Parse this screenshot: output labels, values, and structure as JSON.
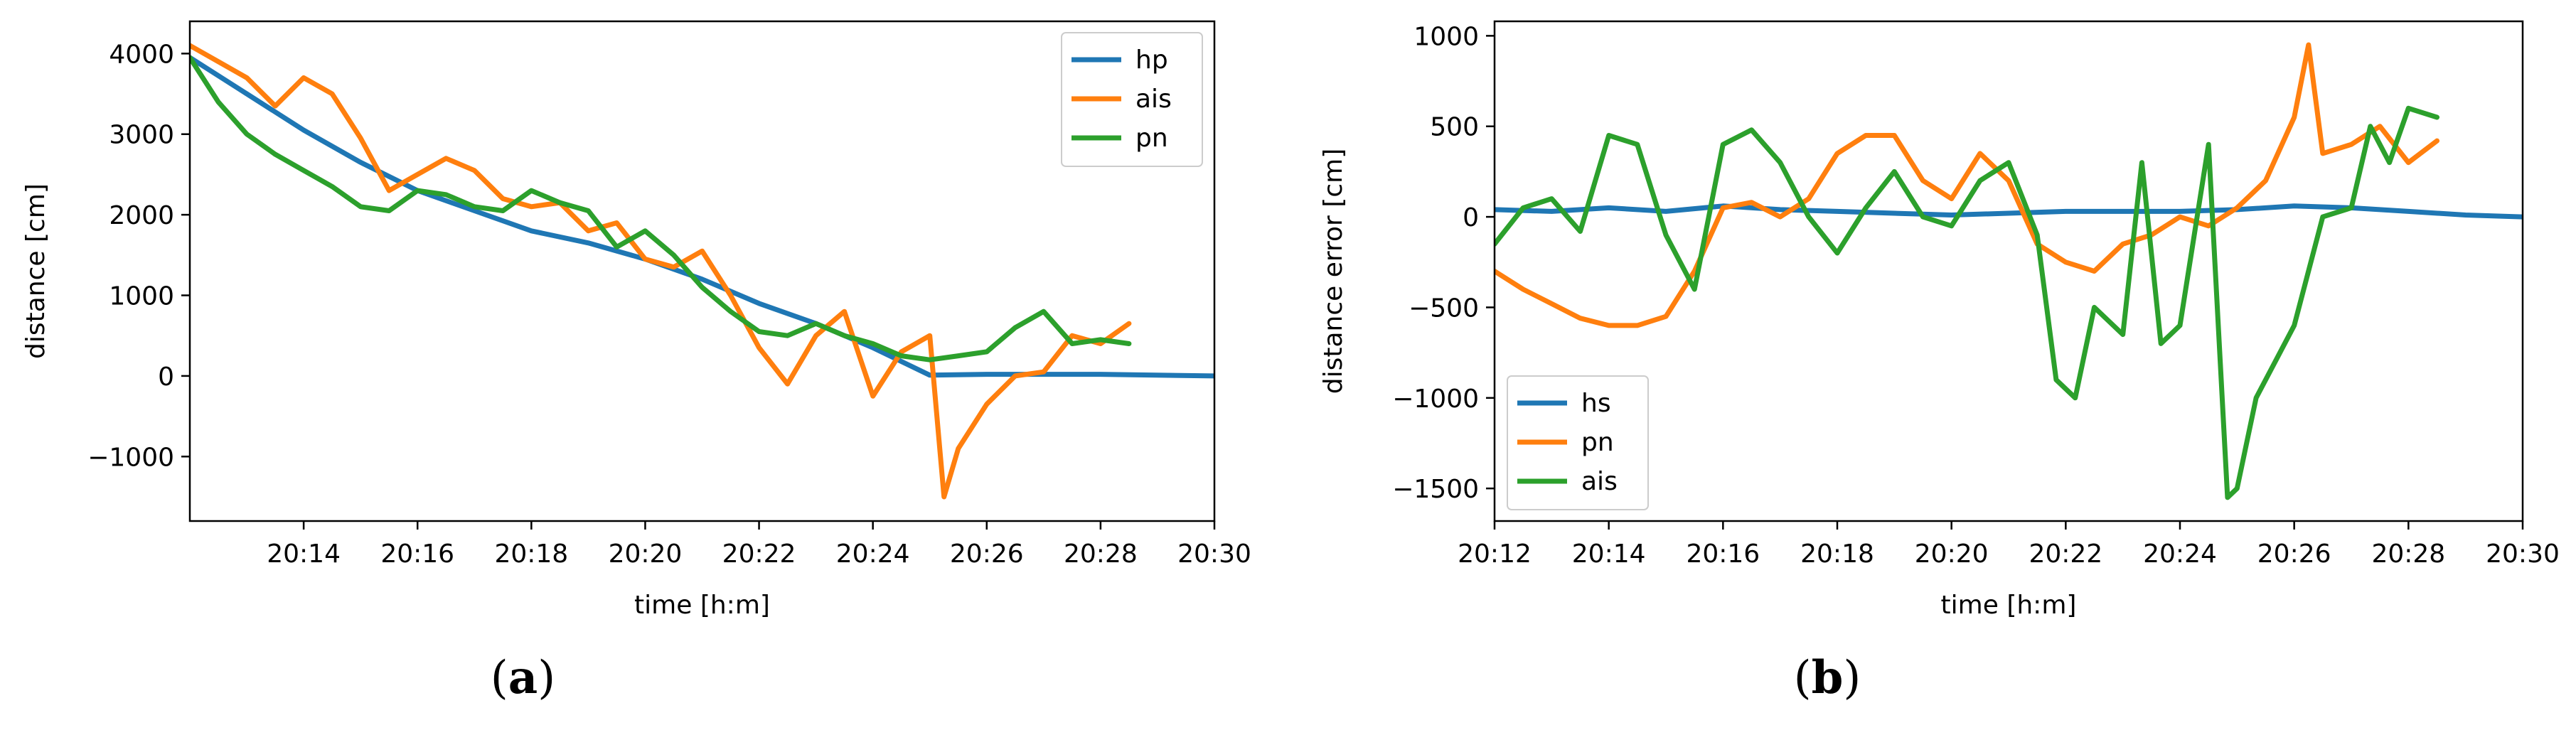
{
  "colors": {
    "blue": "#1f77b4",
    "orange": "#ff7f0e",
    "green": "#2ca02c"
  },
  "chart_data": [
    {
      "type": "line",
      "panel_label": "a",
      "xlabel": "time [h:m]",
      "ylabel": "distance [cm]",
      "xlim": [
        "20:12",
        "20:30"
      ],
      "ylim": [
        -1800,
        4400
      ],
      "xticks": [
        "20:14",
        "20:16",
        "20:18",
        "20:20",
        "20:22",
        "20:24",
        "20:26",
        "20:28",
        "20:30"
      ],
      "yticks": [
        4000,
        3000,
        2000,
        1000,
        0,
        -1000
      ],
      "yticklabels": [
        "4000",
        "3000",
        "2000",
        "1000",
        "0",
        "−1000"
      ],
      "legend": "top-right",
      "series": [
        {
          "name": "hp",
          "color": "#1f77b4",
          "x": [
            "20:12:00",
            "20:13:00",
            "20:14:00",
            "20:15:00",
            "20:16:00",
            "20:17:00",
            "20:18:00",
            "20:19:00",
            "20:20:00",
            "20:21:00",
            "20:22:00",
            "20:23:00",
            "20:24:00",
            "20:25:00",
            "20:26:00",
            "20:28:00",
            "20:30:00"
          ],
          "y": [
            3950,
            3500,
            3050,
            2650,
            2300,
            2050,
            1800,
            1650,
            1450,
            1200,
            900,
            650,
            350,
            10,
            20,
            20,
            0
          ]
        },
        {
          "name": "ais",
          "color": "#ff7f0e",
          "x": [
            "20:12:00",
            "20:12:30",
            "20:13:00",
            "20:13:30",
            "20:14:00",
            "20:14:30",
            "20:15:00",
            "20:15:30",
            "20:16:00",
            "20:16:30",
            "20:17:00",
            "20:17:30",
            "20:18:00",
            "20:18:30",
            "20:19:00",
            "20:19:30",
            "20:20:00",
            "20:20:30",
            "20:21:00",
            "20:21:30",
            "20:22:00",
            "20:22:30",
            "20:23:00",
            "20:23:30",
            "20:24:00",
            "20:24:30",
            "20:25:00",
            "20:25:15",
            "20:25:30",
            "20:26:00",
            "20:26:30",
            "20:27:00",
            "20:27:30",
            "20:28:00",
            "20:28:30"
          ],
          "y": [
            4100,
            3900,
            3700,
            3350,
            3700,
            3500,
            2950,
            2300,
            2500,
            2700,
            2550,
            2200,
            2100,
            2150,
            1800,
            1900,
            1450,
            1350,
            1550,
            1000,
            350,
            -100,
            500,
            800,
            -250,
            300,
            500,
            -1500,
            -900,
            -350,
            0,
            50,
            500,
            400,
            650
          ]
        },
        {
          "name": "pn",
          "color": "#2ca02c",
          "x": [
            "20:12:00",
            "20:12:30",
            "20:13:00",
            "20:13:30",
            "20:14:00",
            "20:14:30",
            "20:15:00",
            "20:15:30",
            "20:16:00",
            "20:16:30",
            "20:17:00",
            "20:17:30",
            "20:18:00",
            "20:18:30",
            "20:19:00",
            "20:19:30",
            "20:20:00",
            "20:20:30",
            "20:21:00",
            "20:21:30",
            "20:22:00",
            "20:22:30",
            "20:23:00",
            "20:23:30",
            "20:24:00",
            "20:24:30",
            "20:25:00",
            "20:25:30",
            "20:26:00",
            "20:26:30",
            "20:27:00",
            "20:27:30",
            "20:28:00",
            "20:28:30"
          ],
          "y": [
            3950,
            3400,
            3000,
            2750,
            2550,
            2350,
            2100,
            2050,
            2300,
            2250,
            2100,
            2050,
            2300,
            2150,
            2050,
            1600,
            1800,
            1500,
            1100,
            800,
            550,
            500,
            650,
            500,
            400,
            250,
            200,
            250,
            300,
            600,
            800,
            400,
            450,
            400
          ]
        }
      ]
    },
    {
      "type": "line",
      "panel_label": "b",
      "xlabel": "time [h:m]",
      "ylabel": "distance error [cm]",
      "xlim": [
        "20:12",
        "20:30"
      ],
      "ylim": [
        -1680,
        1080
      ],
      "xticks": [
        "20:12",
        "20:14",
        "20:16",
        "20:18",
        "20:20",
        "20:22",
        "20:24",
        "20:26",
        "20:28",
        "20:30"
      ],
      "yticks": [
        1000,
        500,
        0,
        -500,
        -1000,
        -1500
      ],
      "yticklabels": [
        "1000",
        "500",
        "0",
        "−500",
        "−1000",
        "−1500"
      ],
      "legend": "bottom-left",
      "series": [
        {
          "name": "hs",
          "color": "#1f77b4",
          "x": [
            "20:12:00",
            "20:13:00",
            "20:14:00",
            "20:15:00",
            "20:16:00",
            "20:17:00",
            "20:18:00",
            "20:19:00",
            "20:20:00",
            "20:21:00",
            "20:22:00",
            "20:23:00",
            "20:24:00",
            "20:25:00",
            "20:26:00",
            "20:27:00",
            "20:28:00",
            "20:29:00",
            "20:30:00"
          ],
          "y": [
            40,
            30,
            50,
            30,
            60,
            40,
            30,
            20,
            10,
            20,
            30,
            30,
            30,
            40,
            60,
            50,
            30,
            10,
            0
          ]
        },
        {
          "name": "pn",
          "color": "#ff7f0e",
          "x": [
            "20:12:00",
            "20:12:30",
            "20:13:00",
            "20:13:30",
            "20:14:00",
            "20:14:30",
            "20:15:00",
            "20:15:30",
            "20:16:00",
            "20:16:30",
            "20:17:00",
            "20:17:30",
            "20:18:00",
            "20:18:30",
            "20:19:00",
            "20:19:30",
            "20:20:00",
            "20:20:30",
            "20:21:00",
            "20:21:30",
            "20:22:00",
            "20:22:30",
            "20:23:00",
            "20:23:30",
            "20:24:00",
            "20:24:30",
            "20:25:00",
            "20:25:30",
            "20:26:00",
            "20:26:15",
            "20:26:30",
            "20:27:00",
            "20:27:30",
            "20:28:00",
            "20:28:30"
          ],
          "y": [
            -300,
            -400,
            -480,
            -560,
            -600,
            -600,
            -550,
            -300,
            50,
            80,
            0,
            100,
            350,
            450,
            450,
            200,
            100,
            350,
            200,
            -150,
            -250,
            -300,
            -150,
            -100,
            0,
            -50,
            50,
            200,
            550,
            950,
            350,
            400,
            500,
            300,
            420
          ]
        },
        {
          "name": "ais",
          "color": "#2ca02c",
          "x": [
            "20:12:00",
            "20:12:30",
            "20:13:00",
            "20:13:30",
            "20:14:00",
            "20:14:30",
            "20:15:00",
            "20:15:30",
            "20:16:00",
            "20:16:30",
            "20:17:00",
            "20:17:30",
            "20:18:00",
            "20:18:30",
            "20:19:00",
            "20:19:30",
            "20:20:00",
            "20:20:30",
            "20:21:00",
            "20:21:30",
            "20:21:50",
            "20:22:10",
            "20:22:30",
            "20:23:00",
            "20:23:20",
            "20:23:40",
            "20:24:00",
            "20:24:30",
            "20:24:50",
            "20:25:00",
            "20:25:20",
            "20:25:40",
            "20:26:00",
            "20:26:30",
            "20:27:00",
            "20:27:20",
            "20:27:40",
            "20:28:00",
            "20:28:30"
          ],
          "y": [
            -150,
            50,
            100,
            -80,
            450,
            400,
            -100,
            -400,
            400,
            480,
            300,
            0,
            -200,
            50,
            250,
            0,
            -50,
            200,
            300,
            -100,
            -900,
            -1000,
            -500,
            -650,
            300,
            -700,
            -600,
            400,
            -1550,
            -1500,
            -1000,
            -800,
            -600,
            0,
            50,
            500,
            300,
            600,
            550
          ]
        }
      ]
    }
  ]
}
